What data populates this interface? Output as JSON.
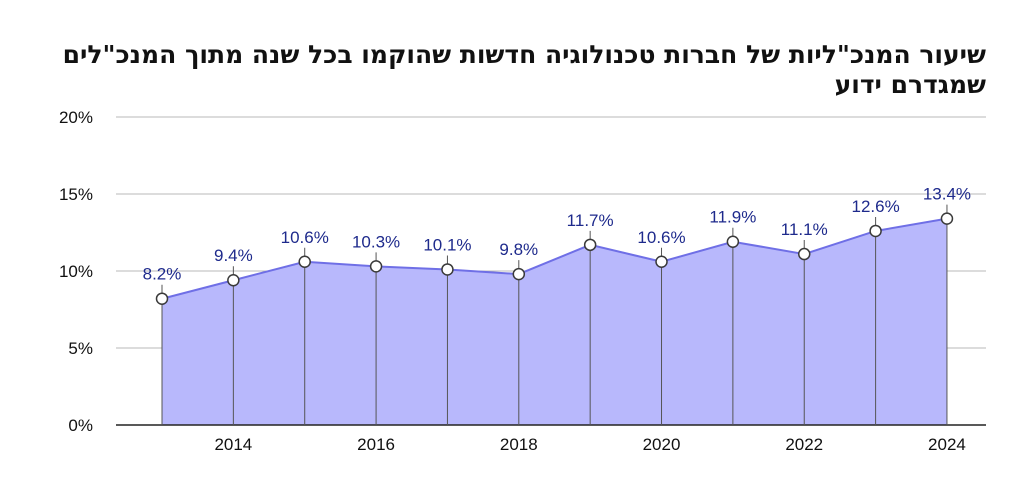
{
  "chart_data": {
    "type": "area",
    "title": "שיעור המנכ\"ליות של חברות טכנולוגיה חדשות שהוקמו בכל שנה מתוך המנכ\"לים שמגדרם ידוע",
    "xlabel": "",
    "ylabel": "",
    "x": [
      2013,
      2014,
      2015,
      2016,
      2017,
      2018,
      2019,
      2020,
      2021,
      2022,
      2023,
      2024
    ],
    "values": [
      8.2,
      9.4,
      10.6,
      10.3,
      10.1,
      9.8,
      11.7,
      10.6,
      11.9,
      11.1,
      12.6,
      13.4
    ],
    "data_labels": [
      "8.2%",
      "9.4%",
      "10.6%",
      "10.3%",
      "10.1%",
      "9.8%",
      "11.7%",
      "10.6%",
      "11.9%",
      "11.1%",
      "12.6%",
      "13.4%"
    ],
    "ylim": [
      0,
      20
    ],
    "y_ticks": [
      0,
      5,
      10,
      15,
      20
    ],
    "y_tick_labels": [
      "0%",
      "5%",
      "10%",
      "15%",
      "20%"
    ],
    "x_ticks": [
      2014,
      2016,
      2018,
      2020,
      2022,
      2024
    ],
    "x_tick_labels": [
      "2014",
      "2016",
      "2018",
      "2020",
      "2022",
      "2024"
    ],
    "grid": true,
    "fill_color": "#b8b8fc",
    "line_color": "#6f6fe6",
    "label_color": "#1e2a8c"
  }
}
